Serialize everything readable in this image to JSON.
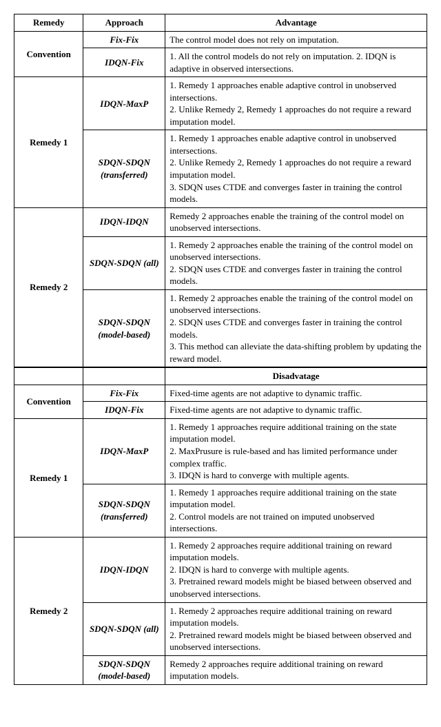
{
  "headers": {
    "remedy": "Remedy",
    "approach": "Approach",
    "advantage": "Advantage",
    "disadvantage": "Disadvatage"
  },
  "remedies": {
    "convention": "Convention",
    "remedy1": "Remedy 1",
    "remedy2": "Remedy 2"
  },
  "approaches": {
    "fixfix": "Fix-Fix",
    "idqnfix": "IDQN-Fix",
    "idqnmaxp": "IDQN-MaxP",
    "sdqntransferred": "SDQN-SDQN (transferred)",
    "idqnidqn": "IDQN-IDQN",
    "sdqnall": "SDQN-SDQN (all)",
    "sdqnmodel": "SDQN-SDQN (model-based)"
  },
  "adv": {
    "fixfix": "The control model does not rely on imputation.",
    "idqnfix": "1. All the control models do not rely on imputation. 2. IDQN is adaptive in observed intersections.",
    "idqnmaxp": "1. Remedy 1 approaches enable adaptive control in unobserved intersections.\n2. Unlike Remedy 2, Remedy 1 approaches do not require a reward imputation model.",
    "sdqntransferred": "1. Remedy 1 approaches enable adaptive control in unobserved intersections.\n2. Unlike Remedy 2, Remedy 1 approaches do not require a reward imputation model.\n3. SDQN uses CTDE and converges faster in training the control models.",
    "idqnidqn": "Remedy 2 approaches enable the training of the control model on unobserved intersections.",
    "sdqnall": "1. Remedy 2 approaches enable the training of the control model on unobserved intersections.\n2. SDQN uses CTDE and converges faster in training the control models.",
    "sdqnmodel": "1. Remedy 2 approaches enable the training of the control model on unobserved intersections.\n2. SDQN uses CTDE and converges faster in training the control models.\n3. This method can alleviate the data-shifting problem by updating the reward model."
  },
  "dis": {
    "fixfix": "Fixed-time agents are not adaptive to dynamic traffic.",
    "idqnfix": "Fixed-time agents are not adaptive to dynamic traffic.",
    "idqnmaxp": "1. Remedy 1 approaches require additional training on the state imputation model.\n2. MaxPrusure is rule-based and has limited performance under complex traffic.\n3. IDQN is hard to converge with multiple agents.",
    "sdqntransferred": "1. Remedy 1 approaches require additional training on the state imputation model.\n2. Control models are not trained on imputed unobserved intersections.",
    "idqnidqn": "1. Remedy 2 approaches require additional training on reward imputation models.\n2. IDQN is hard to converge with multiple agents.\n3. Pretrained reward models might be biased between observed and unobserved intersections.",
    "sdqnall": "1. Remedy 2 approaches require additional training on reward imputation models.\n2. Pretrained reward models might be biased between observed and unobserved intersections.",
    "sdqnmodel": "Remedy 2 approaches require additional training on reward imputation models."
  }
}
